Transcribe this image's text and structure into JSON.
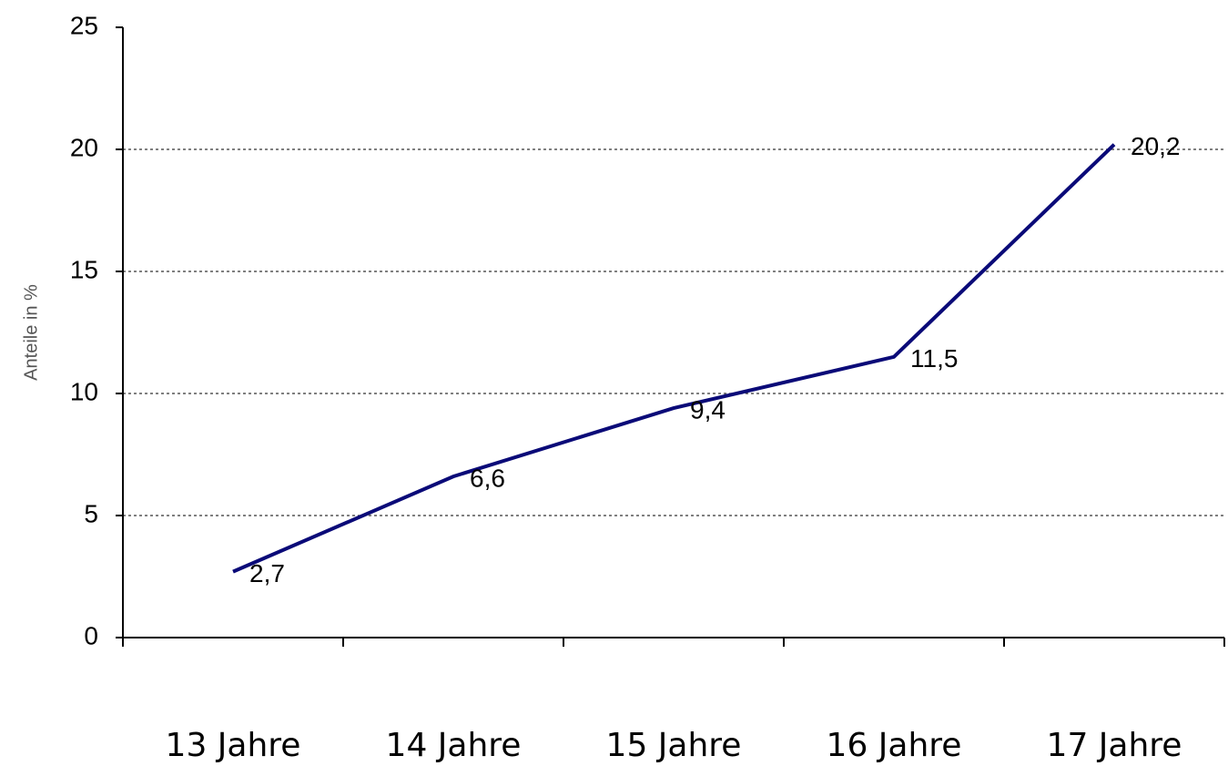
{
  "chart_data": {
    "type": "line",
    "y_label": "Anteile in %",
    "categories": [
      "13 Jahre",
      "14 Jahre",
      "15 Jahre",
      "16 Jahre",
      "17 Jahre"
    ],
    "values": [
      2.7,
      6.6,
      9.4,
      11.5,
      20.2
    ],
    "value_labels": [
      "2,7",
      "6,6",
      "9,4",
      "11,5",
      "20,2"
    ],
    "color": "#0a0a78",
    "ylim": [
      0,
      25
    ],
    "yticks": [
      0,
      5,
      10,
      15,
      20,
      25
    ],
    "grid": true
  }
}
